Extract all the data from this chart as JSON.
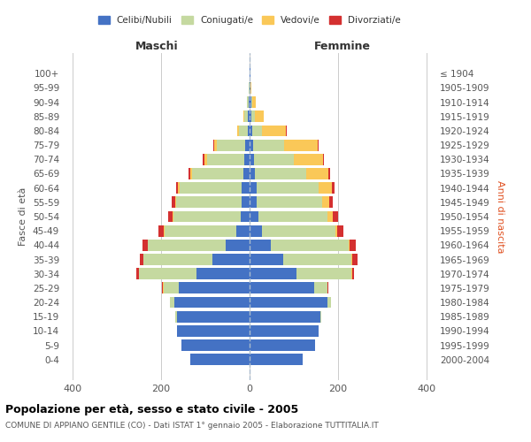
{
  "age_groups": [
    "0-4",
    "5-9",
    "10-14",
    "15-19",
    "20-24",
    "25-29",
    "30-34",
    "35-39",
    "40-44",
    "45-49",
    "50-54",
    "55-59",
    "60-64",
    "65-69",
    "70-74",
    "75-79",
    "80-84",
    "85-89",
    "90-94",
    "95-99",
    "100+"
  ],
  "birth_years": [
    "2000-2004",
    "1995-1999",
    "1990-1994",
    "1985-1989",
    "1980-1984",
    "1975-1979",
    "1970-1974",
    "1965-1969",
    "1960-1964",
    "1955-1959",
    "1950-1954",
    "1945-1949",
    "1940-1944",
    "1935-1939",
    "1930-1934",
    "1925-1929",
    "1920-1924",
    "1915-1919",
    "1910-1914",
    "1905-1909",
    "≤ 1904"
  ],
  "maschi": {
    "celibi": [
      135,
      155,
      165,
      165,
      170,
      160,
      120,
      85,
      55,
      30,
      20,
      18,
      18,
      15,
      12,
      10,
      5,
      5,
      3,
      1,
      1
    ],
    "coniugati": [
      0,
      0,
      0,
      3,
      10,
      35,
      130,
      155,
      175,
      163,
      153,
      148,
      140,
      115,
      85,
      65,
      20,
      8,
      3,
      1,
      0
    ],
    "vedovi": [
      0,
      0,
      0,
      0,
      0,
      1,
      1,
      1,
      1,
      1,
      2,
      3,
      4,
      5,
      6,
      5,
      4,
      1,
      0,
      0,
      0
    ],
    "divorziati": [
      0,
      0,
      0,
      0,
      1,
      2,
      6,
      8,
      12,
      12,
      10,
      8,
      5,
      4,
      3,
      2,
      0,
      0,
      0,
      0,
      0
    ]
  },
  "femmine": {
    "nubili": [
      120,
      148,
      155,
      160,
      175,
      145,
      105,
      75,
      48,
      28,
      20,
      16,
      16,
      12,
      10,
      8,
      5,
      4,
      3,
      1,
      1
    ],
    "coniugate": [
      0,
      0,
      0,
      2,
      8,
      30,
      125,
      155,
      175,
      165,
      155,
      148,
      140,
      115,
      90,
      70,
      22,
      8,
      3,
      1,
      0
    ],
    "vedove": [
      0,
      0,
      0,
      0,
      0,
      1,
      1,
      2,
      3,
      5,
      12,
      15,
      30,
      50,
      65,
      75,
      55,
      20,
      8,
      2,
      0
    ],
    "divorziate": [
      0,
      0,
      0,
      0,
      0,
      1,
      5,
      12,
      14,
      14,
      12,
      8,
      5,
      4,
      3,
      3,
      2,
      0,
      0,
      0,
      0
    ]
  },
  "colors": {
    "celibi": "#4472C4",
    "coniugati": "#C5D9A0",
    "vedovi": "#FAC858",
    "divorziati": "#D43030"
  },
  "xlim": 420,
  "title": "Popolazione per età, sesso e stato civile - 2005",
  "subtitle": "COMUNE DI APPIANO GENTILE (CO) - Dati ISTAT 1° gennaio 2005 - Elaborazione TUTTITALIA.IT",
  "ylabel_left": "Fasce di età",
  "ylabel_right": "Anni di nascita",
  "xlabel_left": "Maschi",
  "xlabel_right": "Femmine",
  "bg_color": "#FFFFFF",
  "grid_color": "#CCCCCC",
  "bar_height": 0.8
}
